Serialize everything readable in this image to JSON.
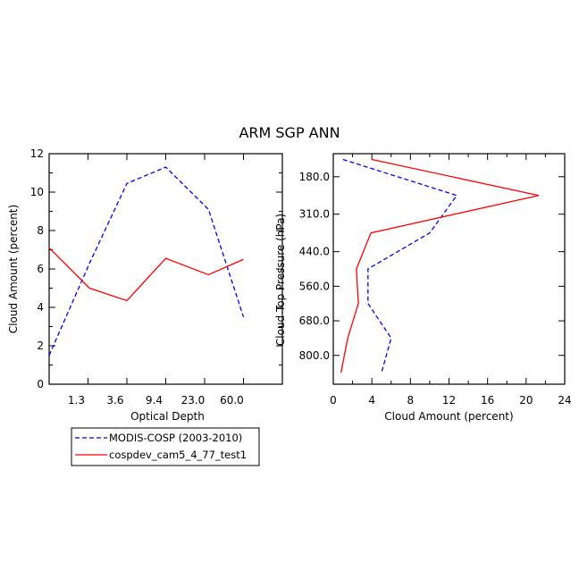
{
  "title": "ARM SGP ANN",
  "chart_data": [
    {
      "type": "line",
      "xlabel": "Optical Depth",
      "ylabel": "Cloud Amount (percent)",
      "ylim": [
        0,
        12
      ],
      "yticks": [
        "0",
        "2",
        "4",
        "6",
        "8",
        "10",
        "12"
      ],
      "xtick_labels": [
        "1.3",
        "3.6",
        "9.4",
        "23.0",
        "60.0"
      ],
      "x": [
        0,
        1,
        2,
        3,
        4,
        5,
        6
      ],
      "xlim": [
        0,
        6
      ],
      "series": [
        {
          "name": "MODIS-COSP (2003-2010)",
          "color": "#0000ff",
          "dash": true,
          "values": [
            1.5,
            6.3,
            10.45,
            11.3,
            9.1,
            3.5,
            null
          ]
        },
        {
          "name": "cospdev_cam5_4_77_test1",
          "color": "#ff0000",
          "dash": false,
          "values": [
            7.1,
            5.0,
            4.35,
            6.55,
            5.7,
            6.5,
            null
          ]
        }
      ]
    },
    {
      "type": "line",
      "xlabel": "Cloud Amount (percent)",
      "ylabel": "Cloud Top Pressure (hPa)",
      "xlim": [
        0,
        24
      ],
      "xticks": [
        "0",
        "4",
        "8",
        "12",
        "16",
        "20",
        "24"
      ],
      "ytick_labels": [
        "180.0",
        "310.0",
        "440.0",
        "560.0",
        "680.0",
        "800.0"
      ],
      "pressure_levels": [
        120,
        245,
        375,
        500,
        620,
        740,
        860
      ],
      "series": [
        {
          "name": "MODIS-COSP (2003-2010)",
          "color": "#0000ff",
          "dash": true,
          "values": [
            1.0,
            12.8,
            10.0,
            3.6,
            3.6,
            6.0,
            5.0
          ]
        },
        {
          "name": "cospdev_cam5_4_77_test1",
          "color": "#ff0000",
          "dash": false,
          "values": [
            4.0,
            21.3,
            3.9,
            2.4,
            2.6,
            1.5,
            0.8
          ]
        }
      ]
    }
  ],
  "legend": {
    "items": [
      {
        "label": "MODIS-COSP (2003-2010)",
        "color": "#0000ff",
        "dash": true
      },
      {
        "label": "cospdev_cam5_4_77_test1",
        "color": "#ff0000",
        "dash": false
      }
    ]
  }
}
